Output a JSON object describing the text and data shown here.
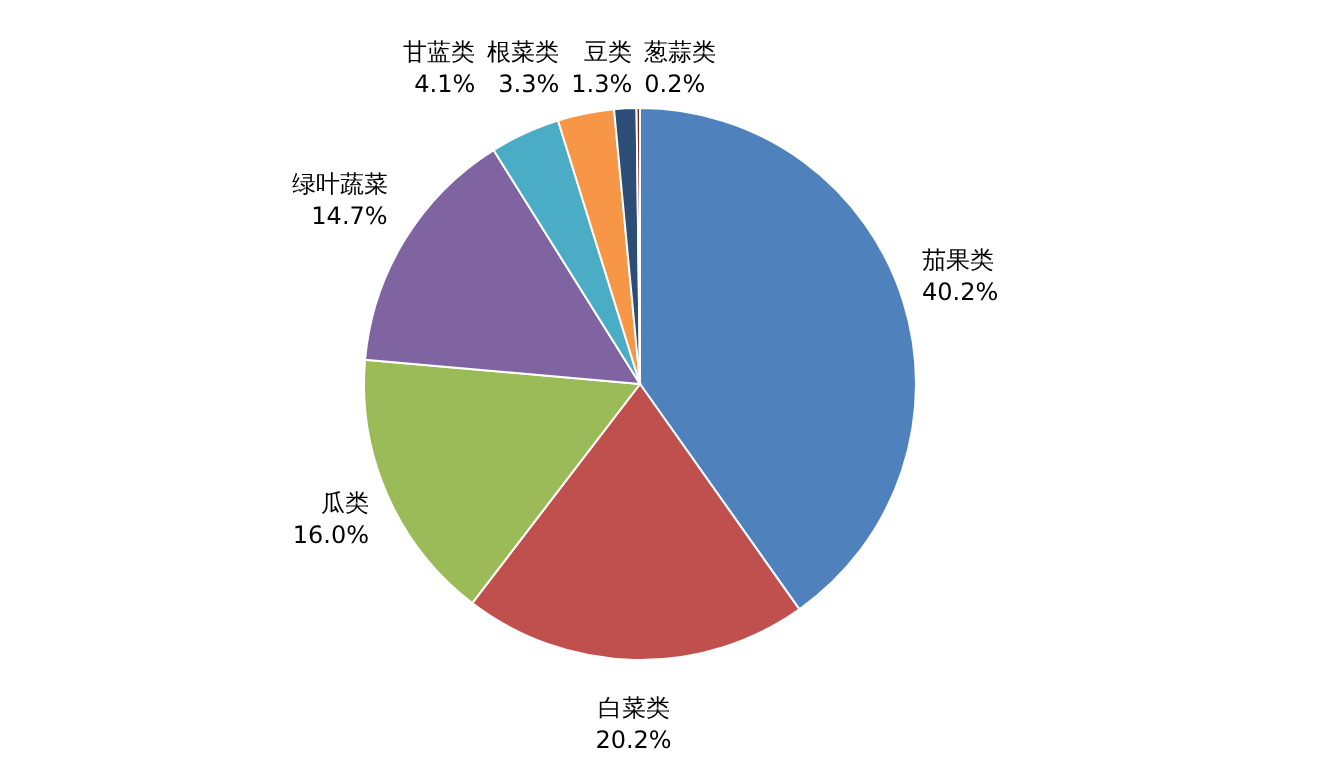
{
  "chart_data": {
    "type": "pie",
    "categories": [
      "茄果类",
      "白菜类",
      "瓜类",
      "绿叶蔬菜",
      "甘蓝类",
      "根菜类",
      "豆类",
      "葱蒜类"
    ],
    "values": [
      40.2,
      20.2,
      16.0,
      14.7,
      4.1,
      3.3,
      1.3,
      0.2
    ],
    "value_labels": [
      "40.2%",
      "20.2%",
      "16.0%",
      "14.7%",
      "4.1%",
      "3.3%",
      "1.3%",
      "0.2%"
    ],
    "colors": [
      "#4f81bd",
      "#c0504d",
      "#9bbb59",
      "#8064a2",
      "#4bacc6",
      "#f79646",
      "#2c4d75",
      "#772c2a"
    ]
  }
}
